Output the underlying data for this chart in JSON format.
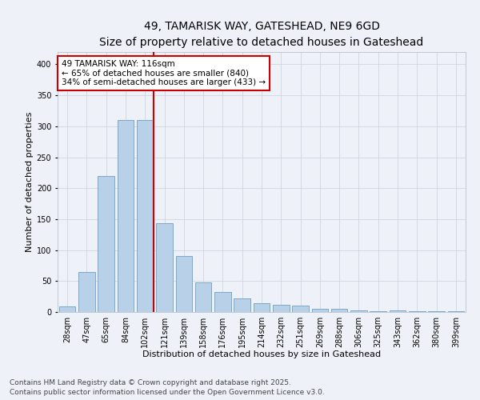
{
  "title_line1": "49, TAMARISK WAY, GATESHEAD, NE9 6GD",
  "title_line2": "Size of property relative to detached houses in Gateshead",
  "xlabel": "Distribution of detached houses by size in Gateshead",
  "ylabel": "Number of detached properties",
  "categories": [
    "28sqm",
    "47sqm",
    "65sqm",
    "84sqm",
    "102sqm",
    "121sqm",
    "139sqm",
    "158sqm",
    "176sqm",
    "195sqm",
    "214sqm",
    "232sqm",
    "251sqm",
    "269sqm",
    "288sqm",
    "306sqm",
    "325sqm",
    "343sqm",
    "362sqm",
    "380sqm",
    "399sqm"
  ],
  "values": [
    9,
    65,
    220,
    310,
    310,
    143,
    91,
    48,
    32,
    22,
    14,
    11,
    10,
    5,
    5,
    2,
    1,
    2,
    1,
    1,
    1
  ],
  "bar_color": "#b8d0e8",
  "bar_edge_color": "#7aaac8",
  "marker_index": 4,
  "marker_line_color": "#cc0000",
  "annotation_text": "49 TAMARISK WAY: 116sqm\n← 65% of detached houses are smaller (840)\n34% of semi-detached houses are larger (433) →",
  "annotation_box_color": "#cc0000",
  "ylim": [
    0,
    420
  ],
  "yticks": [
    0,
    50,
    100,
    150,
    200,
    250,
    300,
    350,
    400
  ],
  "footer_line1": "Contains HM Land Registry data © Crown copyright and database right 2025.",
  "footer_line2": "Contains public sector information licensed under the Open Government Licence v3.0.",
  "bg_color": "#eef2f8",
  "plot_bg_color": "#eef2f8",
  "title1_fontsize": 10,
  "title2_fontsize": 9,
  "xlabel_fontsize": 8,
  "ylabel_fontsize": 8,
  "tick_fontsize": 7,
  "footer_fontsize": 6.5,
  "ann_fontsize": 7.5
}
